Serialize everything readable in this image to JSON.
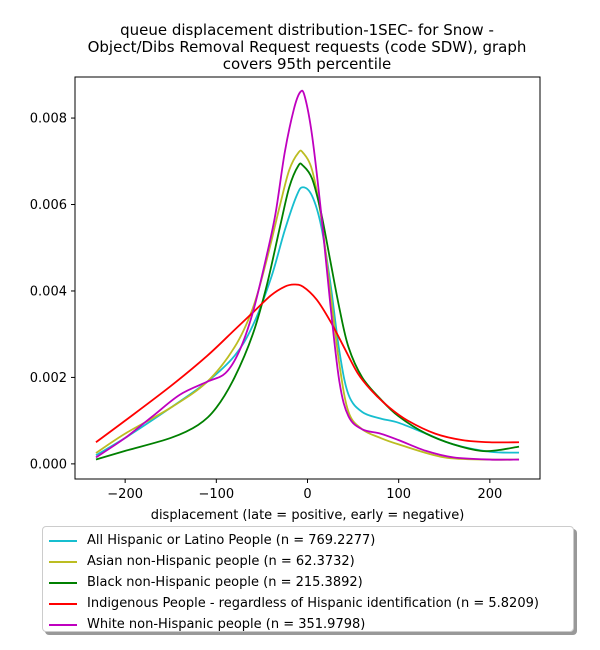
{
  "chart_data": {
    "type": "line",
    "title_lines": [
      "queue displacement distribution-1SEC-  for Snow -",
      "Object/Dibs Removal Request  requests (code SDW), graph",
      "covers 95th percentile"
    ],
    "xlabel": "displacement (late = positive, early = negative)",
    "ylabel": "",
    "xlim": [
      -255,
      255
    ],
    "ylim": [
      -0.00035,
      0.00895
    ],
    "x_ticks": [
      -200,
      -100,
      0,
      100,
      200
    ],
    "x_tick_labels": [
      "−200",
      "−100",
      "0",
      "100",
      "200"
    ],
    "y_ticks": [
      0.0,
      0.002,
      0.004,
      0.006,
      0.008
    ],
    "y_tick_labels": [
      "0.000",
      "0.002",
      "0.004",
      "0.006",
      "0.008"
    ],
    "grid": false,
    "legend_position": "below",
    "series": [
      {
        "name": "All Hispanic or Latino People (n = 769.2277)",
        "color": "#17becf",
        "points": [
          [
            -232,
            0.0002
          ],
          [
            -200,
            0.0006
          ],
          [
            -150,
            0.0013
          ],
          [
            -110,
            0.0019
          ],
          [
            -80,
            0.0025
          ],
          [
            -60,
            0.0032
          ],
          [
            -40,
            0.0043
          ],
          [
            -25,
            0.0054
          ],
          [
            -12,
            0.0062
          ],
          [
            -5,
            0.0064
          ],
          [
            5,
            0.0062
          ],
          [
            15,
            0.0055
          ],
          [
            25,
            0.0042
          ],
          [
            35,
            0.0026
          ],
          [
            45,
            0.0016
          ],
          [
            60,
            0.0012
          ],
          [
            80,
            0.00105
          ],
          [
            100,
            0.00095
          ],
          [
            130,
            0.0007
          ],
          [
            160,
            0.00045
          ],
          [
            200,
            0.00028
          ],
          [
            232,
            0.00026
          ]
        ]
      },
      {
        "name": "Asian non-Hispanic people (n = 62.3732)",
        "color": "#bcbd22",
        "points": [
          [
            -232,
            0.00025
          ],
          [
            -200,
            0.0007
          ],
          [
            -150,
            0.0013
          ],
          [
            -110,
            0.0019
          ],
          [
            -80,
            0.0027
          ],
          [
            -60,
            0.0036
          ],
          [
            -45,
            0.0047
          ],
          [
            -30,
            0.006
          ],
          [
            -20,
            0.0068
          ],
          [
            -10,
            0.0072
          ],
          [
            -5,
            0.0072
          ],
          [
            5,
            0.0068
          ],
          [
            15,
            0.0057
          ],
          [
            25,
            0.004
          ],
          [
            35,
            0.0023
          ],
          [
            45,
            0.0012
          ],
          [
            60,
            0.0008
          ],
          [
            80,
            0.0006
          ],
          [
            100,
            0.00045
          ],
          [
            150,
            0.00015
          ],
          [
            200,
            0.0001
          ],
          [
            232,
            0.0001
          ]
        ]
      },
      {
        "name": "Black non-Hispanic people (n = 215.3892)",
        "color": "#008000",
        "points": [
          [
            -232,
            0.0001
          ],
          [
            -200,
            0.0003
          ],
          [
            -150,
            0.0006
          ],
          [
            -120,
            0.0009
          ],
          [
            -100,
            0.0013
          ],
          [
            -80,
            0.002
          ],
          [
            -60,
            0.003
          ],
          [
            -45,
            0.0041
          ],
          [
            -30,
            0.0055
          ],
          [
            -20,
            0.0064
          ],
          [
            -10,
            0.0069
          ],
          [
            -5,
            0.0069
          ],
          [
            5,
            0.0066
          ],
          [
            15,
            0.0058
          ],
          [
            25,
            0.0047
          ],
          [
            35,
            0.0036
          ],
          [
            45,
            0.0027
          ],
          [
            60,
            0.002
          ],
          [
            80,
            0.0015
          ],
          [
            100,
            0.0011
          ],
          [
            130,
            0.0007
          ],
          [
            160,
            0.00045
          ],
          [
            190,
            0.0003
          ],
          [
            210,
            0.00032
          ],
          [
            232,
            0.0004
          ]
        ]
      },
      {
        "name": "Indigenous People - regardless of Hispanic identification (n = 5.8209)",
        "color": "#ff0000",
        "points": [
          [
            -232,
            0.0005
          ],
          [
            -200,
            0.001
          ],
          [
            -150,
            0.0018
          ],
          [
            -110,
            0.0025
          ],
          [
            -80,
            0.0031
          ],
          [
            -60,
            0.0035
          ],
          [
            -40,
            0.0039
          ],
          [
            -25,
            0.0041
          ],
          [
            -15,
            0.00415
          ],
          [
            -5,
            0.0041
          ],
          [
            10,
            0.0038
          ],
          [
            25,
            0.0033
          ],
          [
            40,
            0.0027
          ],
          [
            55,
            0.0021
          ],
          [
            70,
            0.0017
          ],
          [
            90,
            0.0013
          ],
          [
            110,
            0.001
          ],
          [
            140,
            0.0007
          ],
          [
            170,
            0.00055
          ],
          [
            200,
            0.0005
          ],
          [
            232,
            0.0005
          ]
        ]
      },
      {
        "name": "White non-Hispanic people (n = 351.9798)",
        "color": "#bf00bf",
        "points": [
          [
            -232,
            0.00015
          ],
          [
            -200,
            0.0006
          ],
          [
            -170,
            0.0011
          ],
          [
            -140,
            0.0016
          ],
          [
            -110,
            0.0019
          ],
          [
            -90,
            0.0021
          ],
          [
            -75,
            0.0026
          ],
          [
            -60,
            0.0035
          ],
          [
            -45,
            0.0048
          ],
          [
            -35,
            0.0058
          ],
          [
            -25,
            0.0072
          ],
          [
            -15,
            0.0082
          ],
          [
            -8,
            0.0086
          ],
          [
            -3,
            0.0085
          ],
          [
            5,
            0.0076
          ],
          [
            15,
            0.0058
          ],
          [
            25,
            0.0037
          ],
          [
            35,
            0.0019
          ],
          [
            45,
            0.0011
          ],
          [
            60,
            0.0008
          ],
          [
            80,
            0.0007
          ],
          [
            100,
            0.00055
          ],
          [
            130,
            0.0003
          ],
          [
            160,
            0.00015
          ],
          [
            200,
            0.0001
          ],
          [
            232,
            0.0001
          ]
        ]
      }
    ]
  }
}
